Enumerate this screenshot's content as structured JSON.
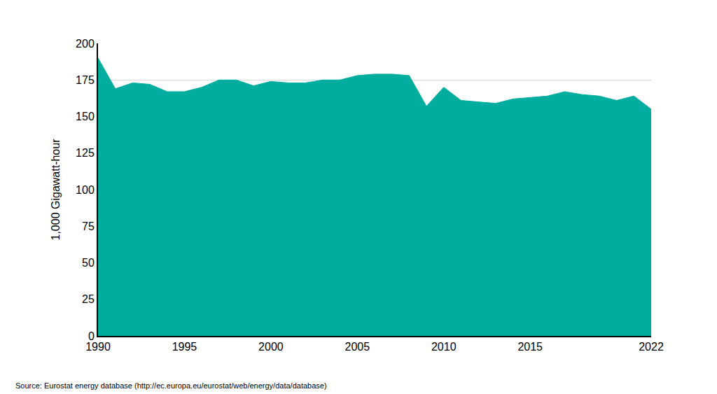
{
  "chart_data": {
    "type": "area",
    "y_label": "1,000 Gigawatt-hour",
    "annotations": [
      "Source: Eurostat energy database (http://ec.europa.eu/eurostat/web/energy/data/database)"
    ],
    "x": [
      1990,
      1991,
      1992,
      1993,
      1994,
      1995,
      1996,
      1997,
      1998,
      1999,
      2000,
      2001,
      2002,
      2003,
      2004,
      2005,
      2006,
      2007,
      2008,
      2009,
      2010,
      2011,
      2012,
      2013,
      2014,
      2015,
      2016,
      2017,
      2018,
      2019,
      2020,
      2021,
      2022
    ],
    "values": [
      190,
      169,
      173,
      172,
      167,
      167,
      170,
      175,
      175,
      171,
      174,
      173,
      173,
      175,
      175,
      178,
      179,
      179,
      178,
      157,
      170,
      161,
      160,
      159,
      162,
      163,
      164,
      167,
      165,
      164,
      161,
      164,
      155
    ],
    "color": "#00ad9f",
    "xlim": [
      1990,
      2022
    ],
    "xticks": [
      1990,
      1995,
      2000,
      2005,
      2010,
      2015,
      2022
    ],
    "ylim": [
      0,
      200
    ],
    "yticks": [
      0,
      25,
      50,
      75,
      100,
      125,
      150,
      175,
      200
    ],
    "grid": true
  }
}
